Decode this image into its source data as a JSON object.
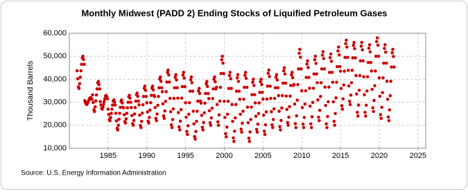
{
  "chart_data": {
    "type": "scatter",
    "title": "Monthly Midwest (PADD 2) Ending Stocks of Liquified Petroleum Gases",
    "ylabel": "Thousand Barrels",
    "source": "Source: U.S. Energy Information Administration",
    "color": "#cc0000",
    "grid": true,
    "xlim": [
      1980,
      2026
    ],
    "ylim": [
      10000,
      60000
    ],
    "xticks": [
      1985,
      1990,
      1995,
      2000,
      2005,
      2010,
      2015,
      2020,
      2025
    ],
    "yticks": [
      {
        "value": 10000,
        "label": "10,000"
      },
      {
        "value": 20000,
        "label": "20,000"
      },
      {
        "value": 30000,
        "label": "30,000"
      },
      {
        "value": 40000,
        "label": "40,000"
      },
      {
        "value": 50000,
        "label": "50,000"
      },
      {
        "value": 60000,
        "label": "60,000"
      }
    ],
    "x": [
      1981,
      1981.08,
      1981.17,
      1981.25,
      1981.33,
      1981.42,
      1981.5,
      1981.58,
      1981.67,
      1981.75,
      1981.83,
      1981.92,
      1982,
      1982.08,
      1982.17,
      1982.25,
      1982.33,
      1982.42,
      1982.5,
      1982.58,
      1982.67,
      1982.75,
      1982.83,
      1982.92,
      1983,
      1983.08,
      1983.17,
      1983.25,
      1983.33,
      1983.42,
      1983.5,
      1983.58,
      1983.67,
      1983.75,
      1983.83,
      1983.92,
      1984,
      1984.08,
      1984.17,
      1984.25,
      1984.33,
      1984.42,
      1984.5,
      1984.58,
      1984.67,
      1984.75,
      1984.83,
      1984.92,
      1985,
      1985.08,
      1985.17,
      1985.25,
      1985.33,
      1985.42,
      1985.5,
      1985.58,
      1985.67,
      1985.75,
      1985.83,
      1985.92,
      1986,
      1986.08,
      1986.17,
      1986.25,
      1986.33,
      1986.42,
      1986.5,
      1986.58,
      1986.67,
      1986.75,
      1986.83,
      1986.92,
      1987,
      1987.08,
      1987.17,
      1987.25,
      1987.33,
      1987.42,
      1987.5,
      1987.58,
      1987.67,
      1987.75,
      1987.83,
      1987.92,
      1988,
      1988.08,
      1988.17,
      1988.25,
      1988.33,
      1988.42,
      1988.5,
      1988.58,
      1988.67,
      1988.75,
      1988.83,
      1988.92,
      1989,
      1989.08,
      1989.17,
      1989.25,
      1989.33,
      1989.42,
      1989.5,
      1989.58,
      1989.67,
      1989.75,
      1989.83,
      1989.92,
      1990,
      1990.08,
      1990.17,
      1990.25,
      1990.33,
      1990.42,
      1990.5,
      1990.58,
      1990.67,
      1990.75,
      1990.83,
      1990.92,
      1991,
      1991.08,
      1991.17,
      1991.25,
      1991.33,
      1991.42,
      1991.5,
      1991.58,
      1991.67,
      1991.75,
      1991.83,
      1991.92,
      1992,
      1992.08,
      1992.17,
      1992.25,
      1992.33,
      1992.42,
      1992.5,
      1992.58,
      1992.67,
      1992.75,
      1992.83,
      1992.92,
      1993,
      1993.08,
      1993.17,
      1993.25,
      1993.33,
      1993.42,
      1993.5,
      1993.58,
      1993.67,
      1993.75,
      1993.83,
      1993.92,
      1994,
      1994.08,
      1994.17,
      1994.25,
      1994.33,
      1994.42,
      1994.5,
      1994.58,
      1994.67,
      1994.75,
      1994.83,
      1994.92,
      1995,
      1995.08,
      1995.17,
      1995.25,
      1995.33,
      1995.42,
      1995.5,
      1995.58,
      1995.67,
      1995.75,
      1995.83,
      1995.92,
      1996,
      1996.08,
      1996.17,
      1996.25,
      1996.33,
      1996.42,
      1996.5,
      1996.58,
      1996.67,
      1996.75,
      1996.83,
      1996.92,
      1997,
      1997.08,
      1997.17,
      1997.25,
      1997.33,
      1997.42,
      1997.5,
      1997.58,
      1997.67,
      1997.75,
      1997.83,
      1997.92,
      1998,
      1998.08,
      1998.17,
      1998.25,
      1998.33,
      1998.42,
      1998.5,
      1998.58,
      1998.67,
      1998.75,
      1998.83,
      1998.92,
      1999,
      1999.08,
      1999.17,
      1999.25,
      1999.33,
      1999.42,
      1999.5,
      1999.58,
      1999.67,
      1999.75,
      1999.83,
      1999.92,
      2000,
      2000.08,
      2000.17,
      2000.25,
      2000.33,
      2000.42,
      2000.5,
      2000.58,
      2000.67,
      2000.75,
      2000.83,
      2000.92,
      2001,
      2001.08,
      2001.17,
      2001.25,
      2001.33,
      2001.42,
      2001.5,
      2001.58,
      2001.67,
      2001.75,
      2001.83,
      2001.92,
      2002,
      2002.08,
      2002.17,
      2002.25,
      2002.33,
      2002.42,
      2002.5,
      2002.58,
      2002.67,
      2002.75,
      2002.83,
      2002.92,
      2003,
      2003.08,
      2003.17,
      2003.25,
      2003.33,
      2003.42,
      2003.5,
      2003.58,
      2003.67,
      2003.75,
      2003.83,
      2003.92,
      2004,
      2004.08,
      2004.17,
      2004.25,
      2004.33,
      2004.42,
      2004.5,
      2004.58,
      2004.67,
      2004.75,
      2004.83,
      2004.92,
      2005,
      2005.08,
      2005.17,
      2005.25,
      2005.33,
      2005.42,
      2005.5,
      2005.58,
      2005.67,
      2005.75,
      2005.83,
      2005.92,
      2006,
      2006.08,
      2006.17,
      2006.25,
      2006.33,
      2006.42,
      2006.5,
      2006.58,
      2006.67,
      2006.75,
      2006.83,
      2006.92,
      2007,
      2007.08,
      2007.17,
      2007.25,
      2007.33,
      2007.42,
      2007.5,
      2007.58,
      2007.67,
      2007.75,
      2007.83,
      2007.92,
      2008,
      2008.08,
      2008.17,
      2008.25,
      2008.33,
      2008.42,
      2008.5,
      2008.58,
      2008.67,
      2008.75,
      2008.83,
      2008.92,
      2009,
      2009.08,
      2009.17,
      2009.25,
      2009.33,
      2009.42,
      2009.5,
      2009.58,
      2009.67,
      2009.75,
      2009.83,
      2009.92,
      2010,
      2010.08,
      2010.17,
      2010.25,
      2010.33,
      2010.42,
      2010.5,
      2010.58,
      2010.67,
      2010.75,
      2010.83,
      2010.92,
      2011,
      2011.08,
      2011.17,
      2011.25,
      2011.33,
      2011.42,
      2011.5,
      2011.58,
      2011.67,
      2011.75,
      2011.83,
      2011.92,
      2012,
      2012.08,
      2012.17,
      2012.25,
      2012.33,
      2012.42,
      2012.5,
      2012.58,
      2012.67,
      2012.75,
      2012.83,
      2012.92,
      2013,
      2013.08,
      2013.17,
      2013.25,
      2013.33,
      2013.42,
      2013.5,
      2013.58,
      2013.67,
      2013.75,
      2013.83,
      2013.92,
      2014,
      2014.08,
      2014.17,
      2014.25,
      2014.33,
      2014.42,
      2014.5,
      2014.58,
      2014.67,
      2014.75,
      2014.83,
      2014.92,
      2015,
      2015.08,
      2015.17,
      2015.25,
      2015.33,
      2015.42,
      2015.5,
      2015.58,
      2015.67,
      2015.75,
      2015.83,
      2015.92,
      2016,
      2016.08,
      2016.17,
      2016.25,
      2016.33,
      2016.42,
      2016.5,
      2016.58,
      2016.67,
      2016.75,
      2016.83,
      2016.92,
      2017,
      2017.08,
      2017.17,
      2017.25,
      2017.33,
      2017.42,
      2017.5,
      2017.58,
      2017.67,
      2017.75,
      2017.83,
      2017.92,
      2018,
      2018.08,
      2018.17,
      2018.25,
      2018.33,
      2018.42,
      2018.5,
      2018.58,
      2018.67,
      2018.75,
      2018.83,
      2018.92,
      2019,
      2019.08,
      2019.17,
      2019.25,
      2019.33,
      2019.42,
      2019.5,
      2019.58,
      2019.67,
      2019.75,
      2019.83,
      2019.92,
      2020,
      2020.08,
      2020.17,
      2020.25,
      2020.33,
      2020.42,
      2020.5,
      2020.58,
      2020.67,
      2020.75,
      2020.83,
      2020.92,
      2021,
      2021.08,
      2021.17,
      2021.25,
      2021.33,
      2021.42,
      2021.5,
      2021.58,
      2021.67,
      2021.75,
      2021.83,
      2021.92
    ],
    "values": [
      43700,
      40200,
      36700,
      36000,
      38100,
      40900,
      43700,
      46500,
      49300,
      50000,
      48600,
      46500,
      30700,
      29900,
      29200,
      29000,
      29500,
      30100,
      30700,
      31300,
      31900,
      32000,
      31700,
      31300,
      33200,
      29900,
      26700,
      26000,
      28000,
      30600,
      33200,
      35800,
      38400,
      39000,
      37700,
      35800,
      30300,
      28800,
      27300,
      27000,
      27900,
      29100,
      30300,
      31500,
      32700,
      33000,
      32400,
      31500,
      27000,
      24700,
      22500,
      22000,
      23400,
      25200,
      27000,
      28800,
      30600,
      31000,
      30100,
      28800,
      25200,
      21900,
      18700,
      18000,
      20000,
      22600,
      25200,
      27800,
      30400,
      31000,
      29700,
      27800,
      27600,
      24600,
      21600,
      21000,
      22800,
      25200,
      27600,
      30000,
      32400,
      33000,
      31800,
      30000,
      27700,
      24200,
      20700,
      20000,
      22100,
      24900,
      27700,
      30500,
      33300,
      34000,
      32600,
      30500,
      28900,
      24400,
      19900,
      19000,
      21700,
      25300,
      28900,
      32500,
      36100,
      37000,
      35200,
      32500,
      29800,
      25800,
      21800,
      21000,
      23400,
      26600,
      29800,
      33000,
      36200,
      37000,
      35400,
      33000,
      32500,
      27700,
      23000,
      22000,
      24900,
      28700,
      32500,
      36300,
      40100,
      41000,
      39100,
      36300,
      34600,
      29300,
      24100,
      23000,
      26200,
      30400,
      34600,
      38800,
      43000,
      44000,
      41900,
      38800,
      31700,
      25900,
      20200,
      19000,
      22500,
      27100,
      31700,
      36300,
      40900,
      42000,
      39700,
      36300,
      31800,
      25500,
      19300,
      18000,
      21800,
      26800,
      31800,
      36800,
      41800,
      43000,
      40500,
      36800,
      29800,
      23500,
      17300,
      16000,
      19800,
      24800,
      29800,
      34800,
      39800,
      41000,
      38500,
      34800,
      26100,
      20600,
      15100,
      14000,
      17300,
      21700,
      26100,
      30500,
      34900,
      36000,
      33800,
      30500,
      29600,
      24300,
      19100,
      18000,
      21200,
      25400,
      29600,
      33800,
      38000,
      39000,
      36900,
      33800,
      31600,
      26300,
      21100,
      20000,
      23200,
      27400,
      31600,
      35800,
      40000,
      41000,
      38900,
      35800,
      36500,
      29000,
      21500,
      20000,
      24500,
      30500,
      36500,
      42500,
      48500,
      50000,
      47000,
      42500,
      30400,
      23400,
      16400,
      15000,
      19200,
      24800,
      30400,
      36000,
      41600,
      43000,
      40200,
      36000,
      29000,
      21700,
      14500,
      13000,
      17400,
      23200,
      29000,
      34800,
      40600,
      42000,
      39100,
      34800,
      31300,
      24800,
      18300,
      17000,
      20900,
      26100,
      31300,
      36500,
      41700,
      43000,
      40400,
      36500,
      27900,
      21100,
      14400,
      13000,
      17100,
      22500,
      27900,
      33300,
      38700,
      40000,
      37300,
      33300,
      29700,
      23900,
      18200,
      17000,
      20500,
      25100,
      29700,
      34300,
      38900,
      40000,
      37700,
      34300,
      31400,
      24400,
      17400,
      16000,
      20200,
      25800,
      31400,
      37000,
      42600,
      44000,
      41200,
      37000,
      31700,
      25900,
      20200,
      19000,
      22500,
      27100,
      31700,
      36300,
      40900,
      42000,
      39700,
      36300,
      32900,
      26100,
      19400,
      18000,
      22100,
      27500,
      32900,
      38300,
      43700,
      45000,
      42300,
      38300,
      32700,
      26900,
      21200,
      20000,
      23500,
      28100,
      32700,
      37300,
      41900,
      43000,
      40700,
      37300,
      37700,
      29200,
      20700,
      19000,
      24100,
      30900,
      37700,
      44500,
      51300,
      53000,
      49600,
      44500,
      35000,
      27700,
      20500,
      19000,
      23400,
      29200,
      35000,
      40800,
      46600,
      48000,
      45100,
      40800,
      36100,
      28300,
      20600,
      19000,
      23700,
      29900,
      36100,
      42300,
      48500,
      50000,
      46900,
      42300,
      38500,
      31000,
      23500,
      22000,
      26500,
      32500,
      38500,
      44500,
      50500,
      52000,
      49000,
      44500,
      36600,
      28600,
      20600,
      19000,
      23800,
      30200,
      36600,
      43000,
      49400,
      51000,
      47800,
      43000,
      38700,
      30200,
      21700,
      20000,
      25100,
      31900,
      38700,
      45500,
      52300,
      54000,
      50600,
      45500,
      43500,
      36000,
      28500,
      27000,
      31500,
      37500,
      43500,
      49500,
      55500,
      57000,
      54000,
      49500,
      43900,
      37100,
      30400,
      29000,
      33100,
      38500,
      43900,
      49300,
      54700,
      56000,
      53300,
      49300,
      41600,
      33600,
      25600,
      24000,
      28800,
      35200,
      41600,
      48000,
      54400,
      56000,
      52800,
      48000,
      41100,
      33300,
      25600,
      24000,
      28700,
      34900,
      41100,
      47300,
      53500,
      55000,
      51900,
      47300,
      43600,
      35600,
      27600,
      26000,
      30800,
      37200,
      43600,
      50000,
      56400,
      58000,
      54800,
      50000,
      40600,
      32600,
      24600,
      23000,
      27800,
      34200,
      40600,
      47000,
      53400,
      55000,
      51800,
      47000,
      39100,
      31300,
      23600,
      22000,
      26700,
      32900,
      39100,
      45300,
      51500,
      53000,
      49900,
      45300
    ]
  }
}
